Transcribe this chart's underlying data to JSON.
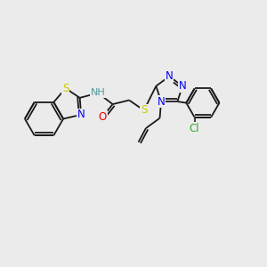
{
  "bg": "#ebebeb",
  "bond_color": "#1a1a1a",
  "S_color": "#cccc00",
  "N_color": "#0000ee",
  "O_color": "#ee0000",
  "Cl_color": "#33aa33",
  "H_color": "#559999",
  "lw": 1.3,
  "fs": 8.5,
  "xlim": [
    0,
    10
  ],
  "ylim": [
    0,
    10
  ]
}
